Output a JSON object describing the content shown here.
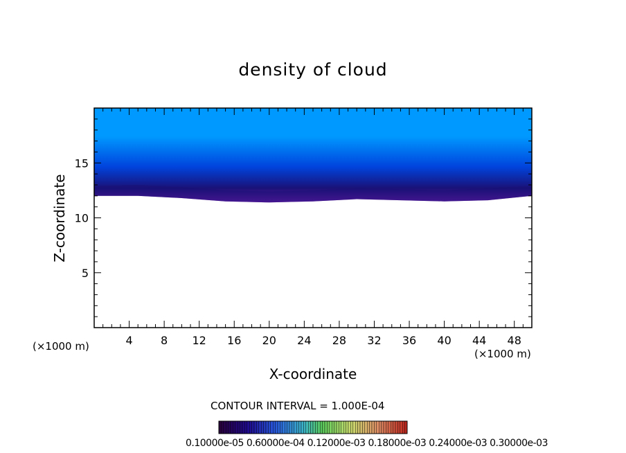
{
  "chart_data": {
    "type": "heatmap",
    "title": "density of cloud",
    "xlabel": "X-coordinate",
    "ylabel": "Z-coordinate",
    "x_unit": "(×1000 m)",
    "xlim": [
      0,
      50
    ],
    "ylim": [
      0,
      20
    ],
    "x_ticks": [
      4,
      8,
      12,
      16,
      20,
      24,
      28,
      32,
      36,
      40,
      44,
      48
    ],
    "y_ticks": [
      5,
      10,
      15
    ],
    "contour_interval_label": "CONTOUR INTERVAL = 1.000E-04",
    "colorbar_labels": "0.10000e-05 0.60000e-04 0.12000e-03 0.18000e-03 0.24000e-03 0.30000e-03",
    "colorbar_range": [
      1e-06,
      0.0003
    ],
    "cloud_layer": {
      "x": [
        0,
        5,
        10,
        15,
        20,
        25,
        30,
        35,
        40,
        45,
        50
      ],
      "cloud_base_z": [
        12.0,
        12.0,
        11.8,
        11.5,
        11.4,
        11.5,
        11.7,
        11.6,
        11.5,
        11.6,
        12.0
      ],
      "dense_core_z": [
        12.9,
        13.0,
        12.8,
        12.5,
        12.4,
        12.5,
        12.7,
        12.6,
        12.5,
        12.7,
        12.9
      ],
      "top_z": 20
    },
    "grid": false
  },
  "colors": {
    "cloud_top": "#0099ff",
    "cloud_mid": "#0044dd",
    "cloud_core": "#1a1177",
    "cloud_base": "#7a1fb0"
  }
}
